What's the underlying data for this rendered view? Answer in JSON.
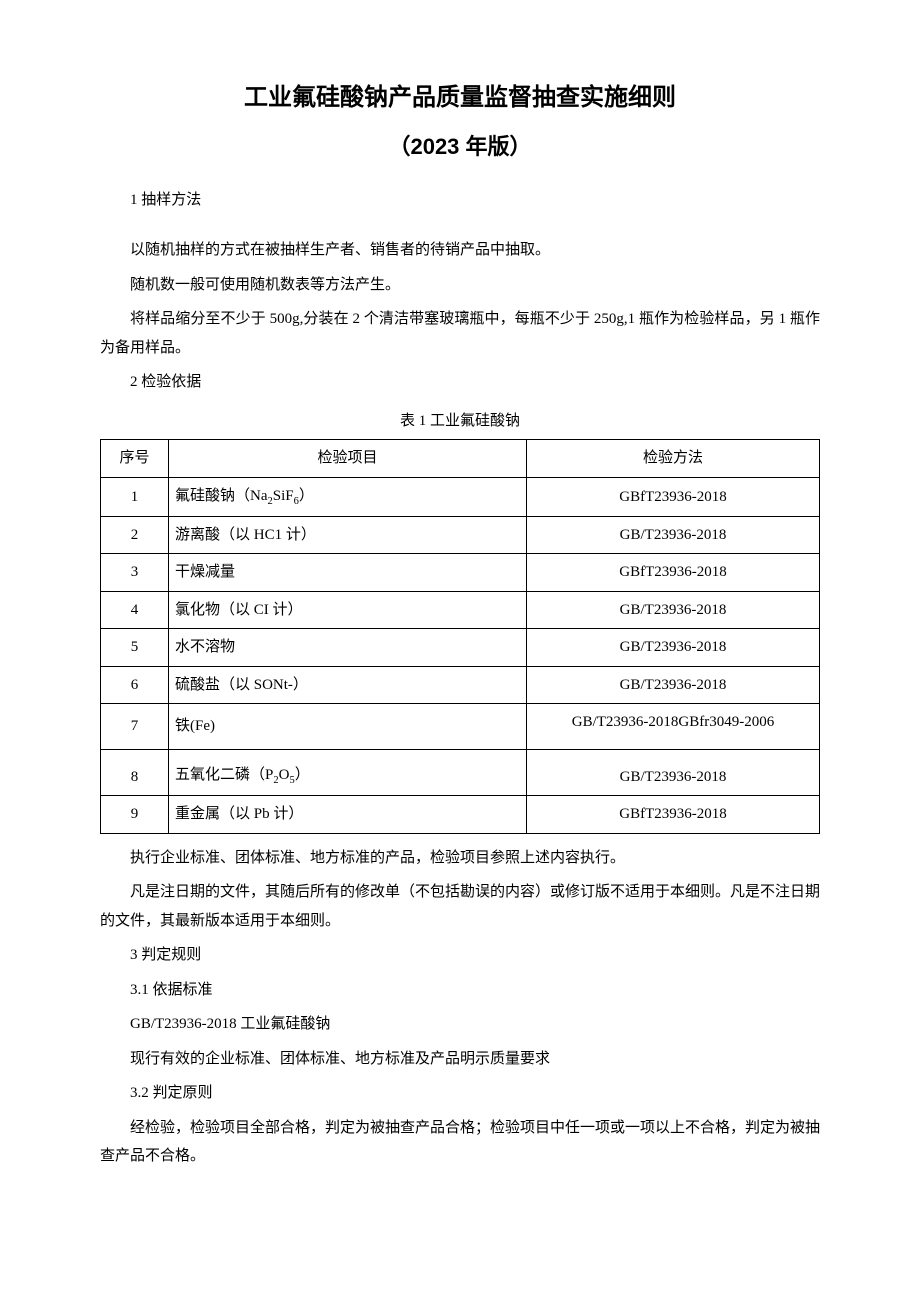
{
  "title_line1": "工业氟硅酸钠产品质量监督抽查实施细则",
  "title_line2": "（2023 年版）",
  "s1_heading": "1 抽样方法",
  "s1_p1": "以随机抽样的方式在被抽样生产者、销售者的待销产品中抽取。",
  "s1_p2": "随机数一般可使用随机数表等方法产生。",
  "s1_p3": "将样品缩分至不少于 500g,分装在 2 个清洁带塞玻璃瓶中，每瓶不少于 250g,1 瓶作为检验样品，另 1 瓶作为备用样品。",
  "s2_heading": "2 检验依据",
  "table_caption": "表 1 工业氟硅酸钠",
  "table_headers": {
    "seq": "序号",
    "item": "检验项目",
    "method": "检验方法"
  },
  "table_rows": [
    {
      "seq": "1",
      "item_html": "氟硅酸钠（Na<sub>2</sub>SiF<sub>6</sub>）",
      "method": "GBfT23936-2018"
    },
    {
      "seq": "2",
      "item_html": "游离酸（以 HC1 计）",
      "method": "GB/T23936-2018"
    },
    {
      "seq": "3",
      "item_html": "干燥减量",
      "method": "GBfT23936-2018"
    },
    {
      "seq": "4",
      "item_html": "氯化物（以 CI 计）",
      "method": "GB/T23936-2018"
    },
    {
      "seq": "5",
      "item_html": "水不溶物",
      "method": "GB/T23936-2018"
    },
    {
      "seq": "6",
      "item_html": "硫酸盐（以 SONt-）",
      "method": "GB/T23936-2018"
    },
    {
      "seq": "7",
      "item_html": "铁(Fe)",
      "method": "GB/T23936-2018GBfr3049-2006"
    },
    {
      "seq": "8",
      "item_html": "五氧化二磷（P<sub>2</sub>O<sub>5</sub>）",
      "method": "GB/T23936-2018"
    },
    {
      "seq": "9",
      "item_html": "重金属（以 Pb 计）",
      "method": "GBfT23936-2018"
    }
  ],
  "s2_p1": "执行企业标准、团体标准、地方标准的产品，检验项目参照上述内容执行。",
  "s2_p2": "凡是注日期的文件，其随后所有的修改单（不包括勘误的内容）或修订版不适用于本细则。凡是不注日期的文件，其最新版本适用于本细则。",
  "s3_heading": "3 判定规则",
  "s3_1_heading": "3.1 依据标准",
  "s3_1_p1": "GB/T23936-2018 工业氟硅酸钠",
  "s3_1_p2": "现行有效的企业标准、团体标准、地方标准及产品明示质量要求",
  "s3_2_heading": "3.2 判定原则",
  "s3_2_p1": "经检验，检验项目全部合格，判定为被抽查产品合格；检验项目中任一项或一项以上不合格，判定为被抽查产品不合格。"
}
